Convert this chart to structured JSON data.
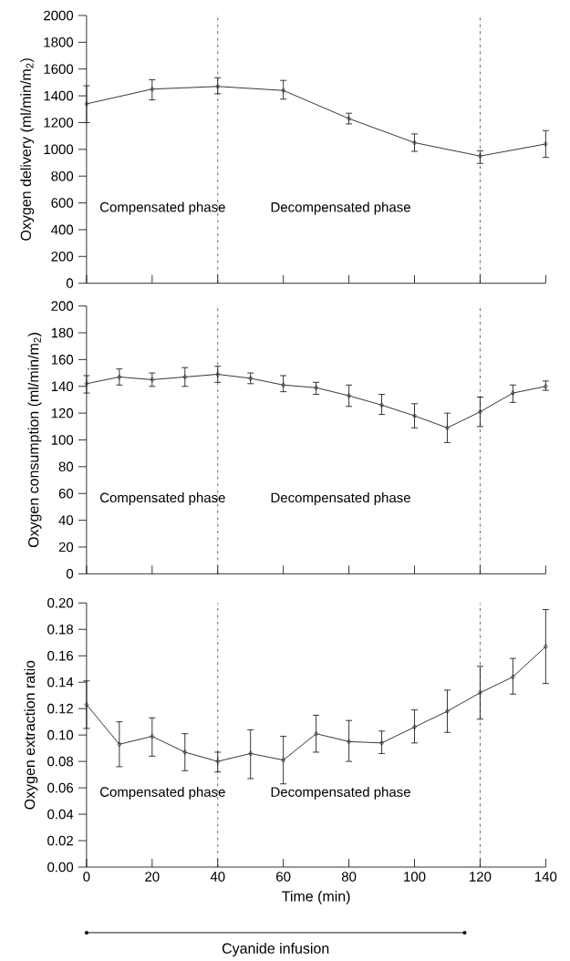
{
  "chart_data": [
    {
      "type": "line",
      "ylabel": "Oxygen delivery (ml/min/m$_{2}$)",
      "x": [
        0,
        20,
        40,
        60,
        80,
        100,
        120,
        140
      ],
      "xlim": [
        0,
        140
      ],
      "xticks": [
        {
          "value": 0,
          "label": null
        },
        {
          "value": 20,
          "label": null
        },
        {
          "value": 40,
          "label": null
        },
        {
          "value": 60,
          "label": null
        },
        {
          "value": 80,
          "label": null
        },
        {
          "value": 100,
          "label": null
        },
        {
          "value": 120,
          "label": null
        },
        {
          "value": 140,
          "label": null
        }
      ],
      "ylim": [
        0,
        2000
      ],
      "yticks": [
        0,
        200,
        400,
        600,
        800,
        1000,
        1200,
        1400,
        1600,
        1800,
        2000
      ],
      "tick_labels": "y",
      "marker": "diamond",
      "line_style": "solid",
      "series": [
        {
          "color": "#231f20",
          "values": [
            1340,
            1450,
            1470,
            1440,
            1230,
            1050,
            950,
            1040
          ],
          "errors": [
            [
              1200,
              1475
            ],
            [
              1370,
              1520
            ],
            [
              1415,
              1535
            ],
            [
              1375,
              1515
            ],
            [
              1190,
              1270
            ],
            [
              985,
              1115
            ],
            [
              895,
              990
            ],
            [
              940,
              1140
            ]
          ]
        }
      ],
      "ref_lines": [
        {
          "axis": "x",
          "value": 40,
          "line_style": "dashdot"
        },
        {
          "axis": "x",
          "value": 120,
          "line_style": "dashdot"
        }
      ],
      "annotations": [
        "Compensated phase",
        "Decompensated phase"
      ]
    },
    {
      "type": "line",
      "ylabel": "Oxygen consumption (ml/min/m$_{2}$)",
      "x": [
        0,
        10,
        20,
        30,
        40,
        50,
        60,
        70,
        80,
        90,
        100,
        110,
        120,
        130,
        140
      ],
      "xlim": [
        0,
        140
      ],
      "xticks": [
        {
          "value": 0,
          "label": null
        },
        {
          "value": 20,
          "label": null
        },
        {
          "value": 40,
          "label": null
        },
        {
          "value": 60,
          "label": null
        },
        {
          "value": 80,
          "label": null
        },
        {
          "value": 100,
          "label": null
        },
        {
          "value": 120,
          "label": null
        },
        {
          "value": 140,
          "label": null
        }
      ],
      "ylim": [
        0,
        200
      ],
      "yticks": [
        0,
        20,
        40,
        60,
        80,
        100,
        120,
        140,
        160,
        180,
        200
      ],
      "tick_labels": "y",
      "marker": "diamond",
      "line_style": "solid",
      "series": [
        {
          "color": "#231f20",
          "values": [
            142,
            147,
            145,
            147,
            149,
            146,
            141,
            139,
            133,
            126,
            118,
            109,
            121,
            135,
            140
          ],
          "errors": [
            [
              135,
              148
            ],
            [
              141,
              153
            ],
            [
              140,
              150
            ],
            [
              140,
              154
            ],
            [
              143,
              155
            ],
            [
              142,
              150
            ],
            [
              136,
              148
            ],
            [
              134,
              143
            ],
            [
              125,
              141
            ],
            [
              119,
              134
            ],
            [
              109,
              127
            ],
            [
              98,
              120
            ],
            [
              110,
              132
            ],
            [
              128,
              141
            ],
            [
              137,
              144
            ]
          ]
        }
      ],
      "ref_lines": [
        {
          "axis": "x",
          "value": 40,
          "line_style": "dashdot"
        },
        {
          "axis": "x",
          "value": 120,
          "line_style": "dashdot"
        }
      ],
      "annotations": [
        "Compensated phase",
        "Decompensated phase"
      ]
    },
    {
      "type": "line",
      "ylabel": "Oxygen extraction ratio",
      "xlabel": "Time (min)",
      "x": [
        0,
        10,
        20,
        30,
        40,
        50,
        60,
        70,
        80,
        90,
        100,
        110,
        120,
        130,
        140
      ],
      "xlim": [
        0,
        140
      ],
      "xticks": [
        0,
        20,
        40,
        60,
        80,
        100,
        120,
        140
      ],
      "ylim": [
        0,
        0.2
      ],
      "yticks": [
        {
          "value": 0,
          "label": "0.00"
        },
        {
          "value": 0.02,
          "label": "0.02"
        },
        {
          "value": 0.04,
          "label": "0.04"
        },
        {
          "value": 0.06,
          "label": "0.06"
        },
        {
          "value": 0.08,
          "label": "0.08"
        },
        {
          "value": 0.1,
          "label": "0.10"
        },
        {
          "value": 0.12,
          "label": "0.12"
        },
        {
          "value": 0.14,
          "label": "0.14"
        },
        {
          "value": 0.16,
          "label": "0.16"
        },
        {
          "value": 0.18,
          "label": "0.18"
        },
        {
          "value": 0.2,
          "label": "0.20"
        }
      ],
      "marker": "diamond",
      "line_style": "solid",
      "series": [
        {
          "color": "#231f20",
          "values": [
            0.123,
            0.093,
            0.099,
            0.087,
            0.08,
            0.086,
            0.081,
            0.101,
            0.095,
            0.094,
            0.106,
            0.118,
            0.132,
            0.144,
            0.167
          ],
          "errors": [
            [
              0.105,
              0.141
            ],
            [
              0.076,
              0.11
            ],
            [
              0.084,
              0.113
            ],
            [
              0.073,
              0.101
            ],
            [
              0.072,
              0.087
            ],
            [
              0.067,
              0.104
            ],
            [
              0.063,
              0.099
            ],
            [
              0.087,
              0.115
            ],
            [
              0.08,
              0.111
            ],
            [
              0.086,
              0.103
            ],
            [
              0.094,
              0.119
            ],
            [
              0.102,
              0.134
            ],
            [
              0.112,
              0.152
            ],
            [
              0.131,
              0.158
            ],
            [
              0.139,
              0.195
            ]
          ]
        }
      ],
      "ref_lines": [
        {
          "axis": "x",
          "value": 40,
          "line_style": "dashdot"
        },
        {
          "axis": "x",
          "value": 120,
          "line_style": "dashdot"
        }
      ],
      "annotations": [
        "Compensated phase",
        "Decompensated phase",
        "Cyanide infusion"
      ]
    }
  ]
}
